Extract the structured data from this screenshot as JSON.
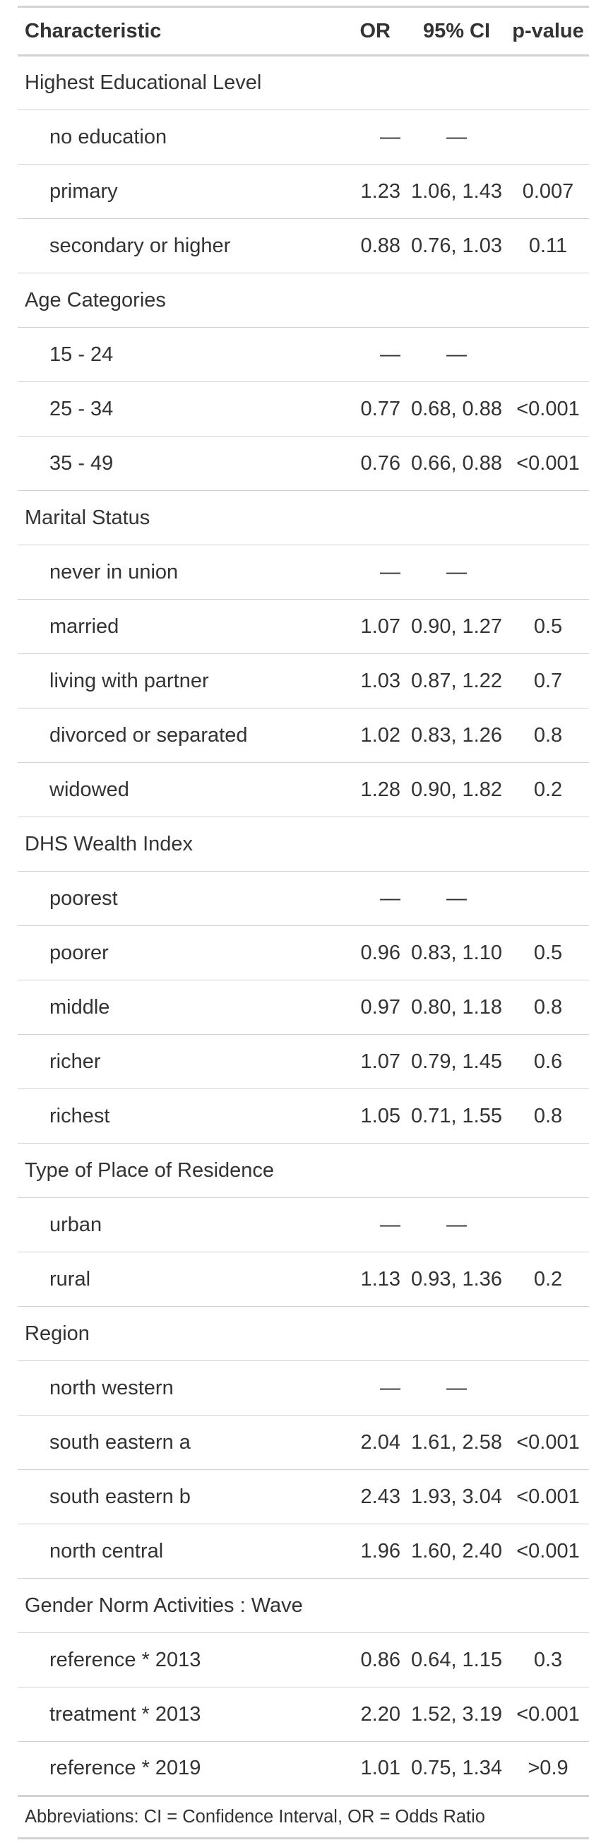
{
  "table": {
    "headers": {
      "characteristic": "Characteristic",
      "or": "OR",
      "ci": "95% CI",
      "p": "p-value"
    },
    "rows": [
      {
        "kind": "group",
        "label": "Highest Educational Level",
        "or": "",
        "ci": "",
        "p": ""
      },
      {
        "kind": "level",
        "label": "no education",
        "or": "—",
        "ci": "—",
        "p": ""
      },
      {
        "kind": "level",
        "label": "primary",
        "or": "1.23",
        "ci": "1.06, 1.43",
        "p": "0.007"
      },
      {
        "kind": "level",
        "label": "secondary or higher",
        "or": "0.88",
        "ci": "0.76, 1.03",
        "p": "0.11"
      },
      {
        "kind": "group",
        "label": "Age Categories",
        "or": "",
        "ci": "",
        "p": ""
      },
      {
        "kind": "level",
        "label": "15 - 24",
        "or": "—",
        "ci": "—",
        "p": ""
      },
      {
        "kind": "level",
        "label": "25 - 34",
        "or": "0.77",
        "ci": "0.68, 0.88",
        "p": "<0.001"
      },
      {
        "kind": "level",
        "label": "35 - 49",
        "or": "0.76",
        "ci": "0.66, 0.88",
        "p": "<0.001"
      },
      {
        "kind": "group",
        "label": "Marital Status",
        "or": "",
        "ci": "",
        "p": ""
      },
      {
        "kind": "level",
        "label": "never in union",
        "or": "—",
        "ci": "—",
        "p": ""
      },
      {
        "kind": "level",
        "label": "married",
        "or": "1.07",
        "ci": "0.90, 1.27",
        "p": "0.5"
      },
      {
        "kind": "level",
        "label": "living with partner",
        "or": "1.03",
        "ci": "0.87, 1.22",
        "p": "0.7"
      },
      {
        "kind": "level",
        "label": "divorced or separated",
        "or": "1.02",
        "ci": "0.83, 1.26",
        "p": "0.8"
      },
      {
        "kind": "level",
        "label": "widowed",
        "or": "1.28",
        "ci": "0.90, 1.82",
        "p": "0.2"
      },
      {
        "kind": "group",
        "label": "DHS Wealth Index",
        "or": "",
        "ci": "",
        "p": ""
      },
      {
        "kind": "level",
        "label": "poorest",
        "or": "—",
        "ci": "—",
        "p": ""
      },
      {
        "kind": "level",
        "label": "poorer",
        "or": "0.96",
        "ci": "0.83, 1.10",
        "p": "0.5"
      },
      {
        "kind": "level",
        "label": "middle",
        "or": "0.97",
        "ci": "0.80, 1.18",
        "p": "0.8"
      },
      {
        "kind": "level",
        "label": "richer",
        "or": "1.07",
        "ci": "0.79, 1.45",
        "p": "0.6"
      },
      {
        "kind": "level",
        "label": "richest",
        "or": "1.05",
        "ci": "0.71, 1.55",
        "p": "0.8"
      },
      {
        "kind": "group",
        "label": "Type of Place of Residence",
        "or": "",
        "ci": "",
        "p": ""
      },
      {
        "kind": "level",
        "label": "urban",
        "or": "—",
        "ci": "—",
        "p": ""
      },
      {
        "kind": "level",
        "label": "rural",
        "or": "1.13",
        "ci": "0.93, 1.36",
        "p": "0.2"
      },
      {
        "kind": "group",
        "label": "Region",
        "or": "",
        "ci": "",
        "p": ""
      },
      {
        "kind": "level",
        "label": "north western",
        "or": "—",
        "ci": "—",
        "p": ""
      },
      {
        "kind": "level",
        "label": "south eastern a",
        "or": "2.04",
        "ci": "1.61, 2.58",
        "p": "<0.001"
      },
      {
        "kind": "level",
        "label": "south eastern b",
        "or": "2.43",
        "ci": "1.93, 3.04",
        "p": "<0.001"
      },
      {
        "kind": "level",
        "label": "north central",
        "or": "1.96",
        "ci": "1.60, 2.40",
        "p": "<0.001"
      },
      {
        "kind": "group",
        "label": "Gender Norm Activities : Wave",
        "or": "",
        "ci": "",
        "p": ""
      },
      {
        "kind": "level",
        "label": "reference * 2013",
        "or": "0.86",
        "ci": "0.64, 1.15",
        "p": "0.3"
      },
      {
        "kind": "level",
        "label": "treatment * 2013",
        "or": "2.20",
        "ci": "1.52, 3.19",
        "p": "<0.001"
      },
      {
        "kind": "level",
        "label": "reference * 2019",
        "or": "1.01",
        "ci": "0.75, 1.34",
        "p": ">0.9"
      }
    ],
    "footnote": "Abbreviations: CI = Confidence Interval, OR = Odds Ratio"
  }
}
